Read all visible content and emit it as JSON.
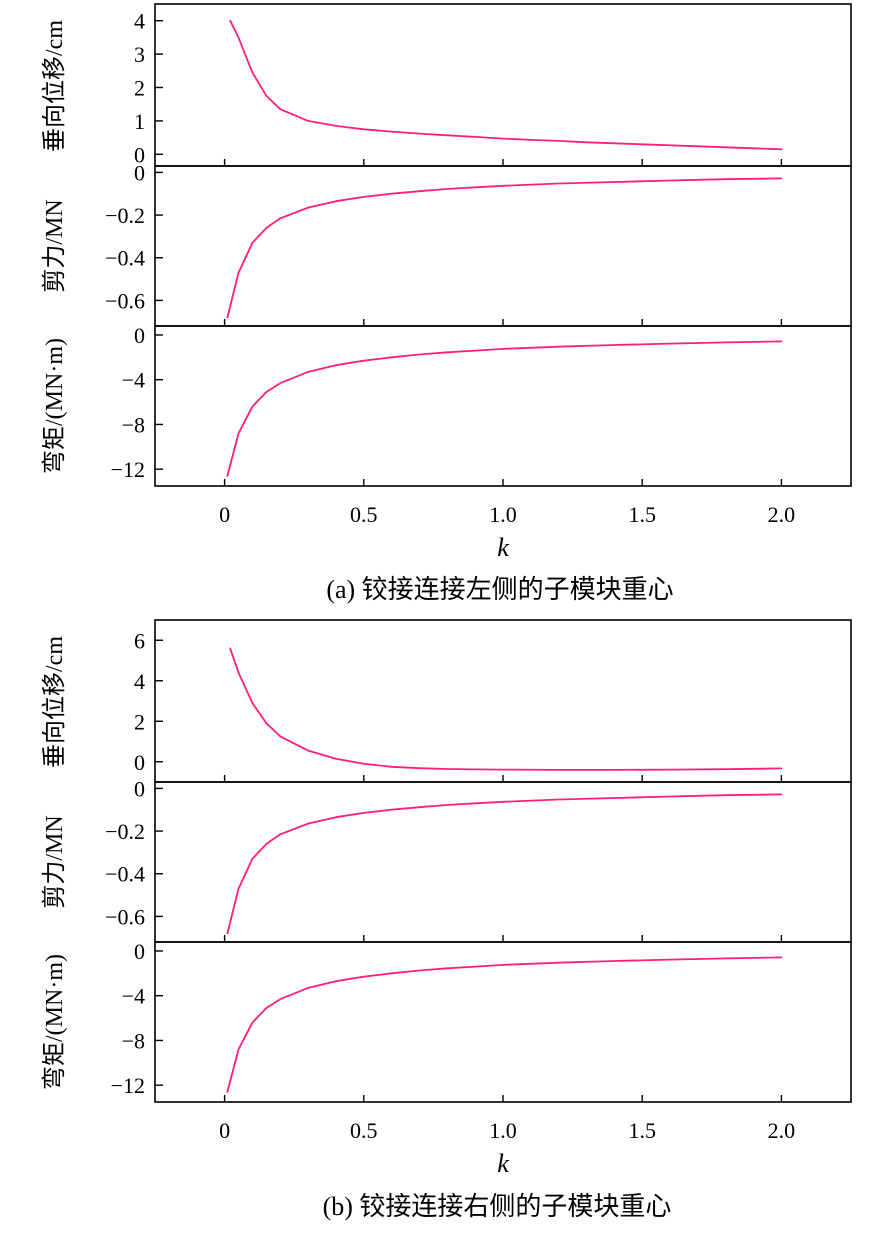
{
  "chart_data": [
    {
      "type": "line",
      "caption": "(a) 铰接连接左侧的子模块重心",
      "xlabel": "k",
      "xlim": [
        -0.25,
        2.25
      ],
      "x_ticks": [
        0,
        0.5,
        1.0,
        1.5,
        2.0
      ],
      "x_tick_labels": [
        "0",
        "0.5",
        "1.0",
        "1.5",
        "2.0"
      ],
      "line_color": "#ff1f7a",
      "panels": [
        {
          "ylabel": "垂向位移/cm",
          "ylim": [
            -0.35,
            4.5
          ],
          "y_ticks": [
            0,
            1,
            2,
            3,
            4
          ],
          "y_tick_labels": [
            "0",
            "1",
            "2",
            "3",
            "4"
          ],
          "x": [
            0.02,
            0.05,
            0.1,
            0.15,
            0.2,
            0.3,
            0.4,
            0.5,
            0.6,
            0.7,
            0.8,
            0.9,
            1.0,
            1.1,
            1.2,
            1.3,
            1.4,
            1.5,
            1.6,
            1.7,
            1.8,
            1.9,
            2.0
          ],
          "y": [
            4.0,
            3.5,
            2.45,
            1.75,
            1.35,
            1.0,
            0.85,
            0.75,
            0.68,
            0.62,
            0.57,
            0.52,
            0.47,
            0.43,
            0.4,
            0.36,
            0.33,
            0.3,
            0.27,
            0.24,
            0.21,
            0.18,
            0.15
          ]
        },
        {
          "ylabel": "剪力/MN",
          "ylim": [
            -0.72,
            0.03
          ],
          "y_ticks": [
            0,
            -0.2,
            -0.4,
            -0.6
          ],
          "y_tick_labels": [
            "0",
            "−0.2",
            "−0.4",
            "−0.6"
          ],
          "x": [
            0.01,
            0.05,
            0.1,
            0.15,
            0.2,
            0.3,
            0.4,
            0.5,
            0.6,
            0.7,
            0.8,
            0.9,
            1.0,
            1.2,
            1.4,
            1.6,
            1.8,
            2.0
          ],
          "y": [
            -0.68,
            -0.47,
            -0.33,
            -0.26,
            -0.215,
            -0.165,
            -0.135,
            -0.115,
            -0.1,
            -0.088,
            -0.078,
            -0.07,
            -0.063,
            -0.052,
            -0.045,
            -0.038,
            -0.032,
            -0.028
          ]
        },
        {
          "ylabel": "弯矩/(MN·m)",
          "ylim": [
            -13.5,
            0.8
          ],
          "y_ticks": [
            0,
            -4,
            -8,
            -12
          ],
          "y_tick_labels": [
            "0",
            "−4",
            "−8",
            "−12"
          ],
          "x": [
            0.01,
            0.05,
            0.1,
            0.15,
            0.2,
            0.3,
            0.4,
            0.5,
            0.6,
            0.7,
            0.8,
            0.9,
            1.0,
            1.2,
            1.4,
            1.6,
            1.8,
            2.0
          ],
          "y": [
            -12.6,
            -8.8,
            -6.4,
            -5.1,
            -4.3,
            -3.3,
            -2.7,
            -2.3,
            -2.0,
            -1.75,
            -1.55,
            -1.4,
            -1.25,
            -1.05,
            -0.9,
            -0.77,
            -0.67,
            -0.58
          ]
        }
      ]
    },
    {
      "type": "line",
      "caption": "(b) 铰接连接右侧的子模块重心",
      "xlabel": "k",
      "xlim": [
        -0.25,
        2.25
      ],
      "x_ticks": [
        0,
        0.5,
        1.0,
        1.5,
        2.0
      ],
      "x_tick_labels": [
        "0",
        "0.5",
        "1.0",
        "1.5",
        "2.0"
      ],
      "line_color": "#ff1f7a",
      "panels": [
        {
          "ylabel": "垂向位移/cm",
          "ylim": [
            -1.0,
            7.0
          ],
          "y_ticks": [
            0,
            2,
            4,
            6
          ],
          "y_tick_labels": [
            "0",
            "2",
            "4",
            "6"
          ],
          "x": [
            0.02,
            0.05,
            0.1,
            0.15,
            0.2,
            0.3,
            0.4,
            0.5,
            0.6,
            0.7,
            0.8,
            0.9,
            1.0,
            1.2,
            1.4,
            1.6,
            1.8,
            2.0
          ],
          "y": [
            5.6,
            4.4,
            2.9,
            1.9,
            1.25,
            0.55,
            0.15,
            -0.1,
            -0.25,
            -0.32,
            -0.36,
            -0.38,
            -0.39,
            -0.4,
            -0.4,
            -0.39,
            -0.37,
            -0.33
          ]
        },
        {
          "ylabel": "剪力/MN",
          "ylim": [
            -0.72,
            0.03
          ],
          "y_ticks": [
            0,
            -0.2,
            -0.4,
            -0.6
          ],
          "y_tick_labels": [
            "0",
            "−0.2",
            "−0.4",
            "−0.6"
          ],
          "x": [
            0.01,
            0.05,
            0.1,
            0.15,
            0.2,
            0.3,
            0.4,
            0.5,
            0.6,
            0.7,
            0.8,
            0.9,
            1.0,
            1.2,
            1.4,
            1.6,
            1.8,
            2.0
          ],
          "y": [
            -0.68,
            -0.47,
            -0.33,
            -0.26,
            -0.215,
            -0.165,
            -0.135,
            -0.115,
            -0.1,
            -0.088,
            -0.078,
            -0.07,
            -0.063,
            -0.052,
            -0.045,
            -0.038,
            -0.032,
            -0.028
          ]
        },
        {
          "ylabel": "弯矩/(MN·m)",
          "ylim": [
            -13.5,
            0.8
          ],
          "y_ticks": [
            0,
            -4,
            -8,
            -12
          ],
          "y_tick_labels": [
            "0",
            "−4",
            "−8",
            "−12"
          ],
          "x": [
            0.01,
            0.05,
            0.1,
            0.15,
            0.2,
            0.3,
            0.4,
            0.5,
            0.6,
            0.7,
            0.8,
            0.9,
            1.0,
            1.2,
            1.4,
            1.6,
            1.8,
            2.0
          ],
          "y": [
            -12.6,
            -8.8,
            -6.4,
            -5.1,
            -4.3,
            -3.3,
            -2.7,
            -2.3,
            -2.0,
            -1.75,
            -1.55,
            -1.4,
            -1.25,
            -1.05,
            -0.9,
            -0.77,
            -0.67,
            -0.58
          ]
        }
      ]
    }
  ]
}
